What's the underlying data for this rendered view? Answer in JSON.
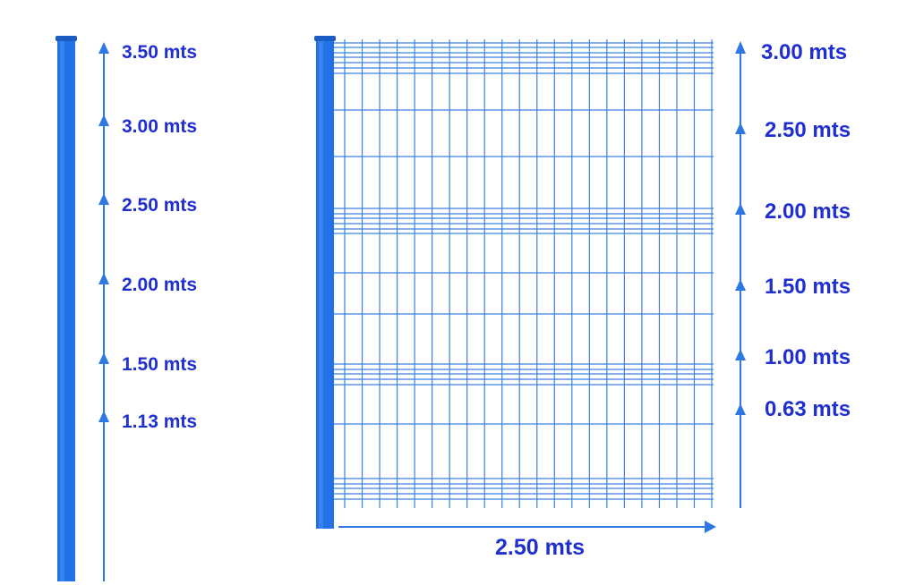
{
  "colors": {
    "post": "#2271e6",
    "post_highlight": "#4c93f0",
    "post_shadow": "#1a5cc4",
    "mesh": "#3b82e0",
    "arrow": "#2e78e3",
    "label": "#1f2fd0"
  },
  "post_scale": {
    "labels": [
      "3.50 mts",
      "3.00 mts",
      "2.50 mts",
      "2.00 mts",
      "1.50 mts",
      "1.13 mts"
    ]
  },
  "panel_scale": {
    "labels": [
      "3.00 mts",
      "2.50 mts",
      "2.00 mts",
      "1.50 mts",
      "1.00 mts",
      "0.63 mts"
    ]
  },
  "panel_width": {
    "label": "2.50 mts"
  }
}
